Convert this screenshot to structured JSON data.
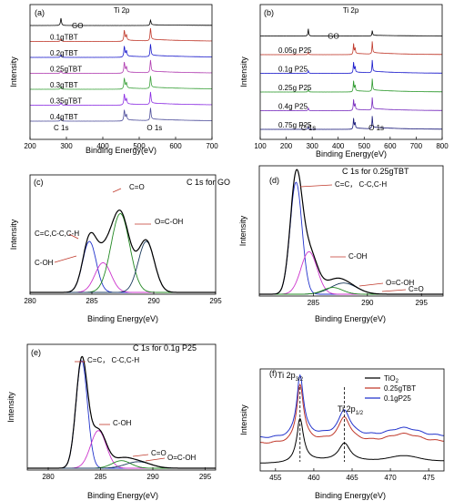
{
  "figure": {
    "panels": [
      "(a)",
      "(b)",
      "(c)",
      "(d)",
      "(e)",
      "(f)"
    ]
  },
  "chart_data": [
    {
      "id": "a",
      "type": "line",
      "panel_label": "(a)",
      "xlabel": "Binding Energy(eV)",
      "ylabel": "Intensity",
      "xlim": [
        200,
        700
      ],
      "xticks": [
        200,
        300,
        400,
        500,
        600,
        700
      ],
      "peak_labels": [
        {
          "text": "Ti 2p",
          "x": 460
        },
        {
          "text": "C 1s",
          "x": 285
        },
        {
          "text": "O 1s",
          "x": 531
        }
      ],
      "series": [
        {
          "name": "0.4gTBT",
          "color": "#4d4d9a"
        },
        {
          "name": "0.35gTBT",
          "color": "#8a2be2"
        },
        {
          "name": "0.3gTBT",
          "color": "#3aa13a"
        },
        {
          "name": "0.25gTBT",
          "color": "#b03cb0"
        },
        {
          "name": "0.2gTBT",
          "color": "#1a1acc"
        },
        {
          "name": "0.1gTBT",
          "color": "#c0392b"
        },
        {
          "name": "GO",
          "color": "#000000"
        }
      ]
    },
    {
      "id": "b",
      "type": "line",
      "panel_label": "(b)",
      "xlabel": "Binding Energy(eV)",
      "ylabel": "Intensity",
      "xlim": [
        100,
        800
      ],
      "xticks": [
        100,
        200,
        300,
        400,
        500,
        600,
        700,
        800
      ],
      "peak_labels": [
        {
          "text": "Ti 2p",
          "x": 460
        },
        {
          "text": "C 1s",
          "x": 285
        },
        {
          "text": "O 1s",
          "x": 531
        }
      ],
      "series": [
        {
          "name": "0.75g P25",
          "color": "#1a1a7a"
        },
        {
          "name": "0.4g P25",
          "color": "#7a2fbf"
        },
        {
          "name": "0.25g P25",
          "color": "#2e9a2e"
        },
        {
          "name": "0.1g P25",
          "color": "#1a1acc"
        },
        {
          "name": "0.05g P25",
          "color": "#c0392b"
        },
        {
          "name": "GO",
          "color": "#000000"
        }
      ]
    },
    {
      "id": "c",
      "type": "line",
      "panel_label": "(c)",
      "title": "C 1s for GO",
      "xlabel": "Binding Energy(eV)",
      "ylabel": "Intensity",
      "xlim": [
        280,
        295
      ],
      "xticks": [
        280,
        285,
        290,
        295
      ],
      "components": [
        {
          "label": "C=C,C-C,C-H",
          "center": 284.8,
          "color": "#2233cc"
        },
        {
          "label": "C-OH",
          "center": 285.9,
          "color": "#cc33cc"
        },
        {
          "label": "C=O",
          "center": 287.3,
          "color": "#228822"
        },
        {
          "label": "O=C-OH",
          "center": 289.4,
          "color": "#1a3a5c"
        }
      ]
    },
    {
      "id": "d",
      "type": "line",
      "panel_label": "(d)",
      "title": "C 1s for 0.25gTBT",
      "xlabel": "Binding Energy(eV)",
      "ylabel": "Intensity",
      "xlim": [
        280,
        297
      ],
      "xticks": [
        285,
        290,
        295
      ],
      "components": [
        {
          "label": "C=C， C-C,C-H",
          "center": 283.4,
          "color": "#2233cc"
        },
        {
          "label": "C-OH",
          "center": 284.6,
          "color": "#cc33cc"
        },
        {
          "label": "O=C-OH",
          "center": 287.8,
          "color": "#1a3a5c"
        },
        {
          "label": "C=O",
          "center": 286.8,
          "color": "#228822"
        }
      ]
    },
    {
      "id": "e",
      "type": "line",
      "panel_label": "(e)",
      "title": "C 1s for 0.1g P25",
      "xlabel": "Binding Energy(eV)",
      "ylabel": "Intensity",
      "xlim": [
        278,
        296
      ],
      "xticks": [
        280,
        285,
        290,
        295
      ],
      "components": [
        {
          "label": "C=C， C-C,C-H",
          "center": 283.2,
          "color": "#2233cc"
        },
        {
          "label": "C-OH",
          "center": 284.8,
          "color": "#cc33cc"
        },
        {
          "label": "C=O",
          "center": 287.0,
          "color": "#228822"
        },
        {
          "label": "O=C-OH",
          "center": 288.6,
          "color": "#1a3a5c"
        }
      ]
    },
    {
      "id": "f",
      "type": "line",
      "panel_label": "(f)",
      "xlabel": "Binding Energy(eV)",
      "ylabel": "Intensity",
      "xlim": [
        453,
        477
      ],
      "xticks": [
        455,
        460,
        465,
        470,
        475
      ],
      "peak_labels": [
        {
          "text": "Ti  2p",
          "sub": "3/2",
          "x": 458.2
        },
        {
          "text": "Ti  2p",
          "sub": "1/2",
          "x": 464.0
        }
      ],
      "series": [
        {
          "name": "TiO",
          "sub": "2",
          "color": "#000000"
        },
        {
          "name": "0.25gTBT",
          "color": "#c0392b"
        },
        {
          "name": "0.1gP25",
          "color": "#2233cc"
        }
      ]
    }
  ]
}
